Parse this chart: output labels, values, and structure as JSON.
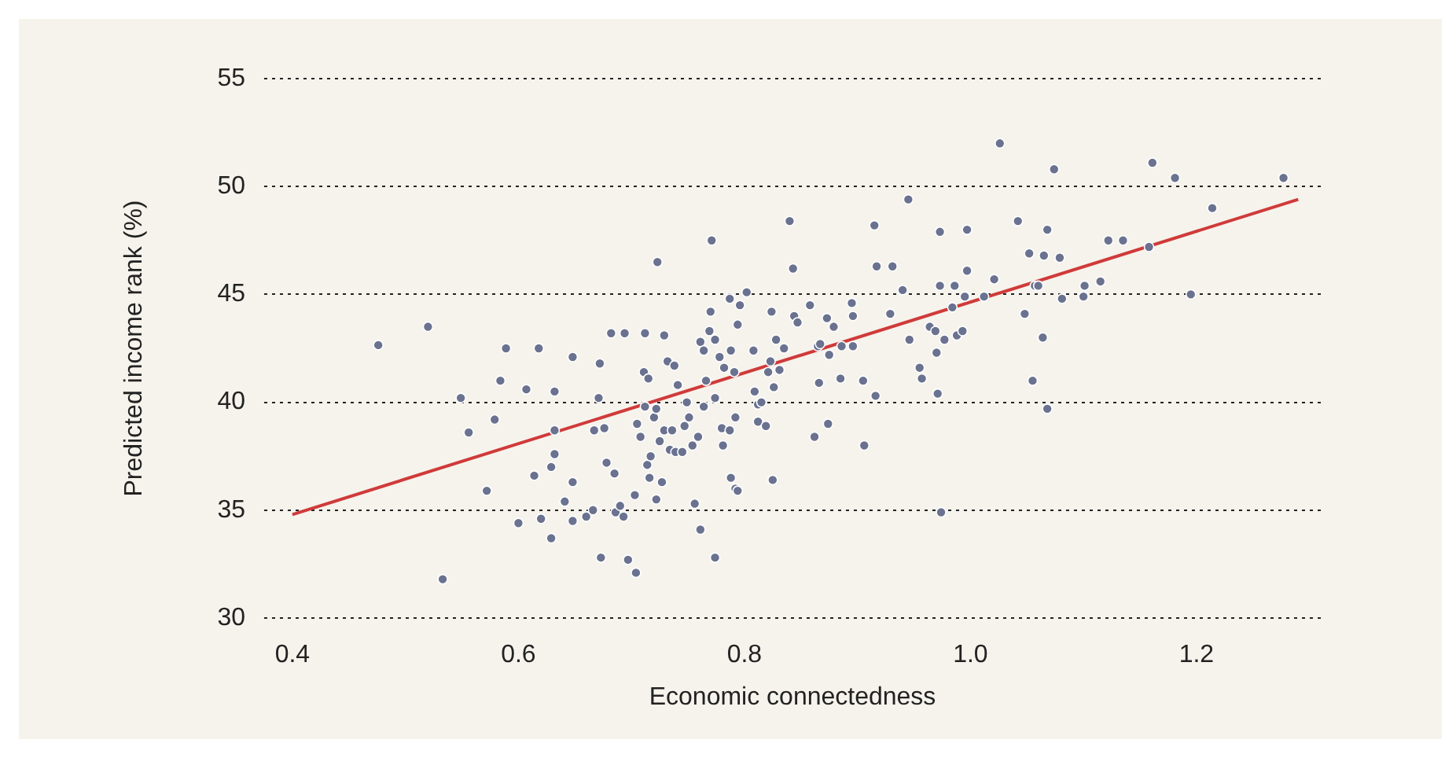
{
  "chart_data": {
    "type": "scatter",
    "xlabel": "Economic connectedness",
    "ylabel": "Predicted income rank (%)",
    "xlim": [
      0.375,
      1.31
    ],
    "ylim": [
      30,
      55
    ],
    "xticks": [
      0.4,
      0.6,
      0.8,
      {
        "value": 1.0,
        "label": "1.0"
      },
      1.2
    ],
    "yticks": [
      30,
      35,
      40,
      45,
      50,
      55
    ],
    "grid": "y",
    "marker": "circle",
    "legend": false,
    "series": [
      {
        "type": "scatter",
        "color": "#6a7290",
        "x": [
          0.476,
          0.52,
          0.533,
          0.549,
          0.556,
          0.572,
          0.579,
          0.584,
          0.589,
          0.6,
          0.607,
          0.614,
          0.618,
          0.62,
          0.629,
          0.629,
          0.632,
          0.632,
          0.632,
          0.641,
          0.648,
          0.648,
          0.648,
          0.66,
          0.666,
          0.667,
          0.672,
          0.671,
          0.673,
          0.676,
          0.678,
          0.682,
          0.685,
          0.686,
          0.69,
          0.693,
          0.694,
          0.697,
          0.703,
          0.704,
          0.705,
          0.708,
          0.711,
          0.712,
          0.712,
          0.714,
          0.715,
          0.716,
          0.717,
          0.72,
          0.722,
          0.723,
          0.722,
          0.725,
          0.727,
          0.729,
          0.729,
          0.732,
          0.734,
          0.736,
          0.738,
          0.739,
          0.741,
          0.745,
          0.747,
          0.749,
          0.751,
          0.754,
          0.756,
          0.759,
          0.761,
          0.761,
          0.764,
          0.764,
          0.766,
          0.769,
          0.77,
          0.771,
          0.774,
          0.774,
          0.774,
          0.778,
          0.78,
          0.781,
          0.782,
          0.787,
          0.788,
          0.787,
          0.788,
          0.791,
          0.792,
          0.792,
          0.794,
          0.794,
          0.796,
          0.802,
          0.808,
          0.809,
          0.812,
          0.812,
          0.815,
          0.819,
          0.821,
          0.823,
          0.824,
          0.825,
          0.826,
          0.828,
          0.831,
          0.835,
          0.84,
          0.843,
          0.844,
          0.847,
          0.858,
          0.862,
          0.865,
          0.866,
          0.867,
          0.873,
          0.874,
          0.875,
          0.879,
          0.885,
          0.886,
          0.895,
          0.896,
          0.896,
          0.905,
          0.906,
          0.916,
          0.915,
          0.917,
          0.929,
          0.931,
          0.94,
          0.946,
          0.945,
          0.955,
          0.957,
          0.964,
          0.969,
          0.97,
          0.971,
          0.973,
          0.973,
          0.974,
          0.977,
          0.984,
          0.986,
          0.988,
          0.993,
          0.995,
          0.997,
          0.997,
          1.012,
          1.021,
          1.026,
          1.042,
          1.048,
          1.052,
          1.055,
          1.057,
          1.06,
          1.064,
          1.065,
          1.068,
          1.068,
          1.074,
          1.079,
          1.081,
          1.1,
          1.101,
          1.115,
          1.122,
          1.135,
          1.158,
          1.161,
          1.181,
          1.195,
          1.214,
          1.277
        ],
        "values": [
          42.65,
          43.5,
          31.8,
          40.2,
          38.6,
          35.9,
          39.2,
          41.0,
          42.5,
          34.4,
          40.6,
          36.6,
          42.5,
          34.6,
          37.0,
          33.7,
          37.6,
          40.5,
          38.7,
          35.4,
          36.3,
          42.1,
          34.5,
          34.7,
          35.0,
          38.7,
          41.8,
          40.2,
          32.8,
          38.8,
          37.2,
          43.2,
          36.7,
          34.9,
          35.2,
          34.7,
          43.2,
          32.7,
          35.7,
          32.1,
          39.0,
          38.4,
          41.4,
          43.2,
          39.8,
          37.1,
          41.1,
          36.5,
          37.5,
          39.3,
          39.7,
          46.5,
          35.5,
          38.2,
          36.3,
          38.7,
          43.1,
          41.9,
          37.8,
          38.7,
          41.7,
          37.7,
          40.8,
          37.7,
          38.9,
          40.0,
          39.3,
          38.0,
          35.3,
          38.4,
          34.1,
          42.8,
          39.8,
          42.4,
          41.0,
          43.3,
          44.2,
          47.5,
          32.8,
          40.2,
          42.9,
          42.1,
          38.8,
          38.0,
          41.6,
          44.8,
          42.4,
          38.7,
          36.5,
          41.4,
          39.3,
          36.0,
          43.6,
          35.9,
          44.5,
          45.1,
          42.4,
          40.5,
          39.1,
          39.9,
          40.0,
          38.9,
          41.4,
          41.9,
          44.2,
          36.4,
          40.7,
          42.9,
          41.5,
          42.5,
          48.4,
          46.2,
          44.0,
          43.7,
          44.5,
          38.4,
          42.6,
          40.9,
          42.7,
          43.9,
          39.0,
          42.2,
          43.5,
          41.1,
          42.6,
          44.6,
          42.6,
          44.0,
          41.0,
          38.0,
          40.3,
          48.2,
          46.3,
          44.1,
          46.3,
          45.2,
          42.9,
          49.4,
          41.6,
          41.1,
          43.5,
          43.3,
          42.3,
          40.4,
          47.9,
          45.4,
          34.9,
          42.9,
          44.4,
          45.4,
          43.1,
          43.3,
          44.9,
          48.0,
          46.1,
          44.9,
          45.7,
          52.0,
          48.4,
          44.1,
          46.9,
          41.0,
          45.4,
          45.4,
          43.0,
          46.8,
          48.0,
          39.7,
          50.8,
          46.7,
          44.8,
          44.9,
          45.4,
          45.6,
          47.5,
          47.5,
          47.2,
          51.1,
          50.4,
          45.0,
          49.0,
          50.4
        ]
      },
      {
        "type": "line",
        "color": "#d03a3a",
        "marker": "none",
        "x": [
          0.4,
          1.29
        ],
        "values": [
          34.8,
          49.4
        ]
      }
    ]
  }
}
